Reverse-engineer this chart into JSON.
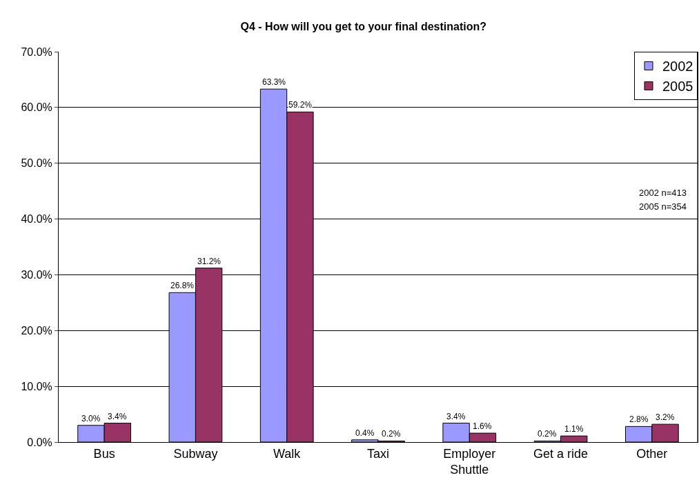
{
  "chart_data": {
    "type": "bar",
    "title": "Q4 - How will you get to your final destination?",
    "categories": [
      "Bus",
      "Subway",
      "Walk",
      "Taxi",
      "Employer Shuttle",
      "Get a ride",
      "Other"
    ],
    "series": [
      {
        "name": "2002",
        "color": "#9999ff",
        "values": [
          3.0,
          26.8,
          63.3,
          0.4,
          3.4,
          0.2,
          2.8
        ],
        "value_labels": [
          "3.0%",
          "26.8%",
          "63.3%",
          "0.4%",
          "3.4%",
          "0.2%",
          "2.8%"
        ]
      },
      {
        "name": "2005",
        "color": "#993366",
        "values": [
          3.4,
          31.2,
          59.2,
          0.2,
          1.6,
          1.1,
          3.2
        ],
        "value_labels": [
          "3.4%",
          "31.2%",
          "59.2%",
          "0.2%",
          "1.6%",
          "1.1%",
          "3.2%"
        ]
      }
    ],
    "ylim": [
      0,
      70
    ],
    "yticks": [
      {
        "value": 0,
        "label": "0.0%"
      },
      {
        "value": 10,
        "label": "10.0%"
      },
      {
        "value": 20,
        "label": "20.0%"
      },
      {
        "value": 30,
        "label": "30.0%"
      },
      {
        "value": 40,
        "label": "40.0%"
      },
      {
        "value": 50,
        "label": "50.0%"
      },
      {
        "value": 60,
        "label": "60.0%"
      },
      {
        "value": 70,
        "label": "70.0%"
      }
    ],
    "grid": "y",
    "legend": "top right",
    "annotations": [
      "2002 n=413",
      "2005 n=354"
    ]
  }
}
